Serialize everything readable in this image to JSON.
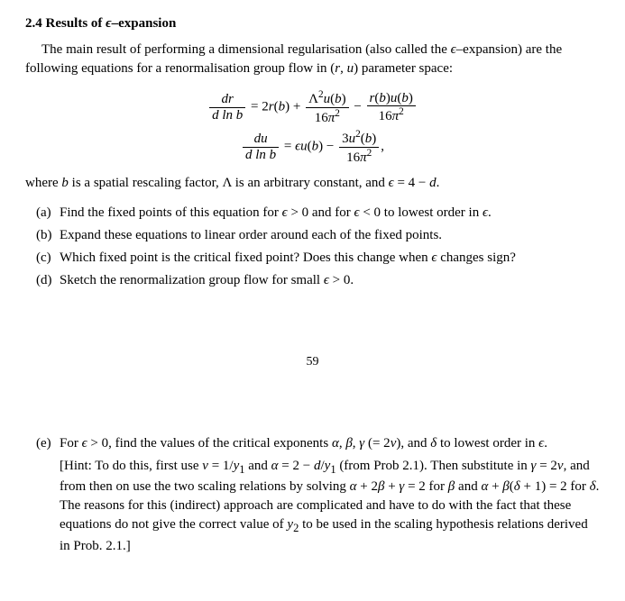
{
  "section": {
    "number": "2.4",
    "title_prefix": "Results of ",
    "title_symbol": "ϵ",
    "title_suffix": "–expansion"
  },
  "intro": {
    "line1_a": "The main result of performing a dimensional regularisation (also called the ",
    "line1_sym": "ϵ",
    "line1_b": "–expansion)",
    "line2_a": "are the following equations for a renormalisation group flow in (",
    "line2_r": "r",
    "line2_c": ", ",
    "line2_u": "u",
    "line2_d": ") parameter space:"
  },
  "equations": {
    "eq1": {
      "lhs_num": "dr",
      "lhs_den_a": "d ln ",
      "lhs_den_b": "b",
      "eq": " = ",
      "t1a": "2",
      "t1b": "r",
      "t1c": "(",
      "t1d": "b",
      "t1e": ") + ",
      "f1_num_a": "Λ",
      "f1_num_sup": "2",
      "f1_num_b": "u",
      "f1_num_c": "(",
      "f1_num_d": "b",
      "f1_num_e": ")",
      "f1_den_a": "16",
      "f1_den_b": "π",
      "f1_den_sup": "2",
      "minus": " − ",
      "f2_num_a": "r",
      "f2_num_b": "(",
      "f2_num_c": "b",
      "f2_num_d": ")",
      "f2_num_e": "u",
      "f2_num_f": "(",
      "f2_num_g": "b",
      "f2_num_h": ")",
      "f2_den_a": "16",
      "f2_den_b": "π",
      "f2_den_sup": "2"
    },
    "eq2": {
      "lhs_num": "du",
      "lhs_den_a": "d ln ",
      "lhs_den_b": "b",
      "eq": " = ",
      "t1a": "ϵ",
      "t1b": "u",
      "t1c": "(",
      "t1d": "b",
      "t1e": ") − ",
      "f1_num_a": "3",
      "f1_num_b": "u",
      "f1_num_sup": "2",
      "f1_num_c": "(",
      "f1_num_d": "b",
      "f1_num_e": ")",
      "f1_den_a": "16",
      "f1_den_b": "π",
      "f1_den_sup": "2",
      "comma": ","
    }
  },
  "where": {
    "a": "where ",
    "b": "b",
    "c": " is a spatial rescaling factor, Λ is an arbitrary constant, and ",
    "eps": "ϵ",
    "d": " = 4 − ",
    "dvar": "d",
    "e": "."
  },
  "items": {
    "a": {
      "label": "(a)",
      "t1": "Find the fixed points of this equation for ",
      "e1": "ϵ",
      "t2": " > 0 and for ",
      "e2": "ϵ",
      "t3": " < 0 to lowest order in ",
      "e3": "ϵ",
      "t4": "."
    },
    "b": {
      "label": "(b)",
      "text": "Expand these equations to linear order around each of the fixed points."
    },
    "c": {
      "label": "(c)",
      "t1": "Which fixed point is the critical fixed point? Does this change when ",
      "e1": "ϵ",
      "t2": " changes sign?"
    },
    "d": {
      "label": "(d)",
      "t1": "Sketch the renormalization group flow for small ",
      "e1": "ϵ",
      "t2": " > 0."
    },
    "e": {
      "label": "(e)",
      "t1": "For ",
      "e1": "ϵ",
      "t2": " > 0, find the values of the critical exponents ",
      "a": "α",
      "c1": ", ",
      "b": "β",
      "c2": ", ",
      "g": "γ",
      "t3": " (= 2",
      "nu": "ν",
      "t4": "), and ",
      "del": "δ",
      "t5": " to lowest order in ",
      "e2": "ϵ",
      "t6": "."
    }
  },
  "page_number": "59",
  "hint": {
    "open": "[Hint:  To do this, first use ",
    "nu": "ν",
    "l1a": " = 1/",
    "y1a": "y",
    "sub1a": "1",
    "l1b": " and ",
    "alpha": "α",
    "l1c": " = 2 − ",
    "dvar": "d",
    "l1d": "/",
    "y1b": "y",
    "sub1b": "1",
    "l1e": " (from Prob 2.1).  Then substitute in ",
    "gamma": "γ",
    "l2a": " = 2",
    "nu2": "ν",
    "l2b": ", and from then on use the two scaling relations by solving ",
    "alpha2": "α",
    "l3a": " + 2",
    "beta": "β",
    "l3b": " + ",
    "gamma2": "γ",
    "l3c": " = 2 for ",
    "beta2": "β",
    "l3d": " and ",
    "alpha3": "α",
    "l3e": " + ",
    "beta3": "β",
    "l3f": "(",
    "delta": "δ",
    "l3g": " + 1) = 2 for ",
    "delta2": "δ",
    "l3h": ".  The reasons for this (indirect) approach are complicated and have to do with the fact that these equations do not give the correct value of ",
    "y2": "y",
    "sub2": "2",
    "l4a": " to be used in the scaling hypothesis relations derived in Prob. 2.1.]"
  }
}
